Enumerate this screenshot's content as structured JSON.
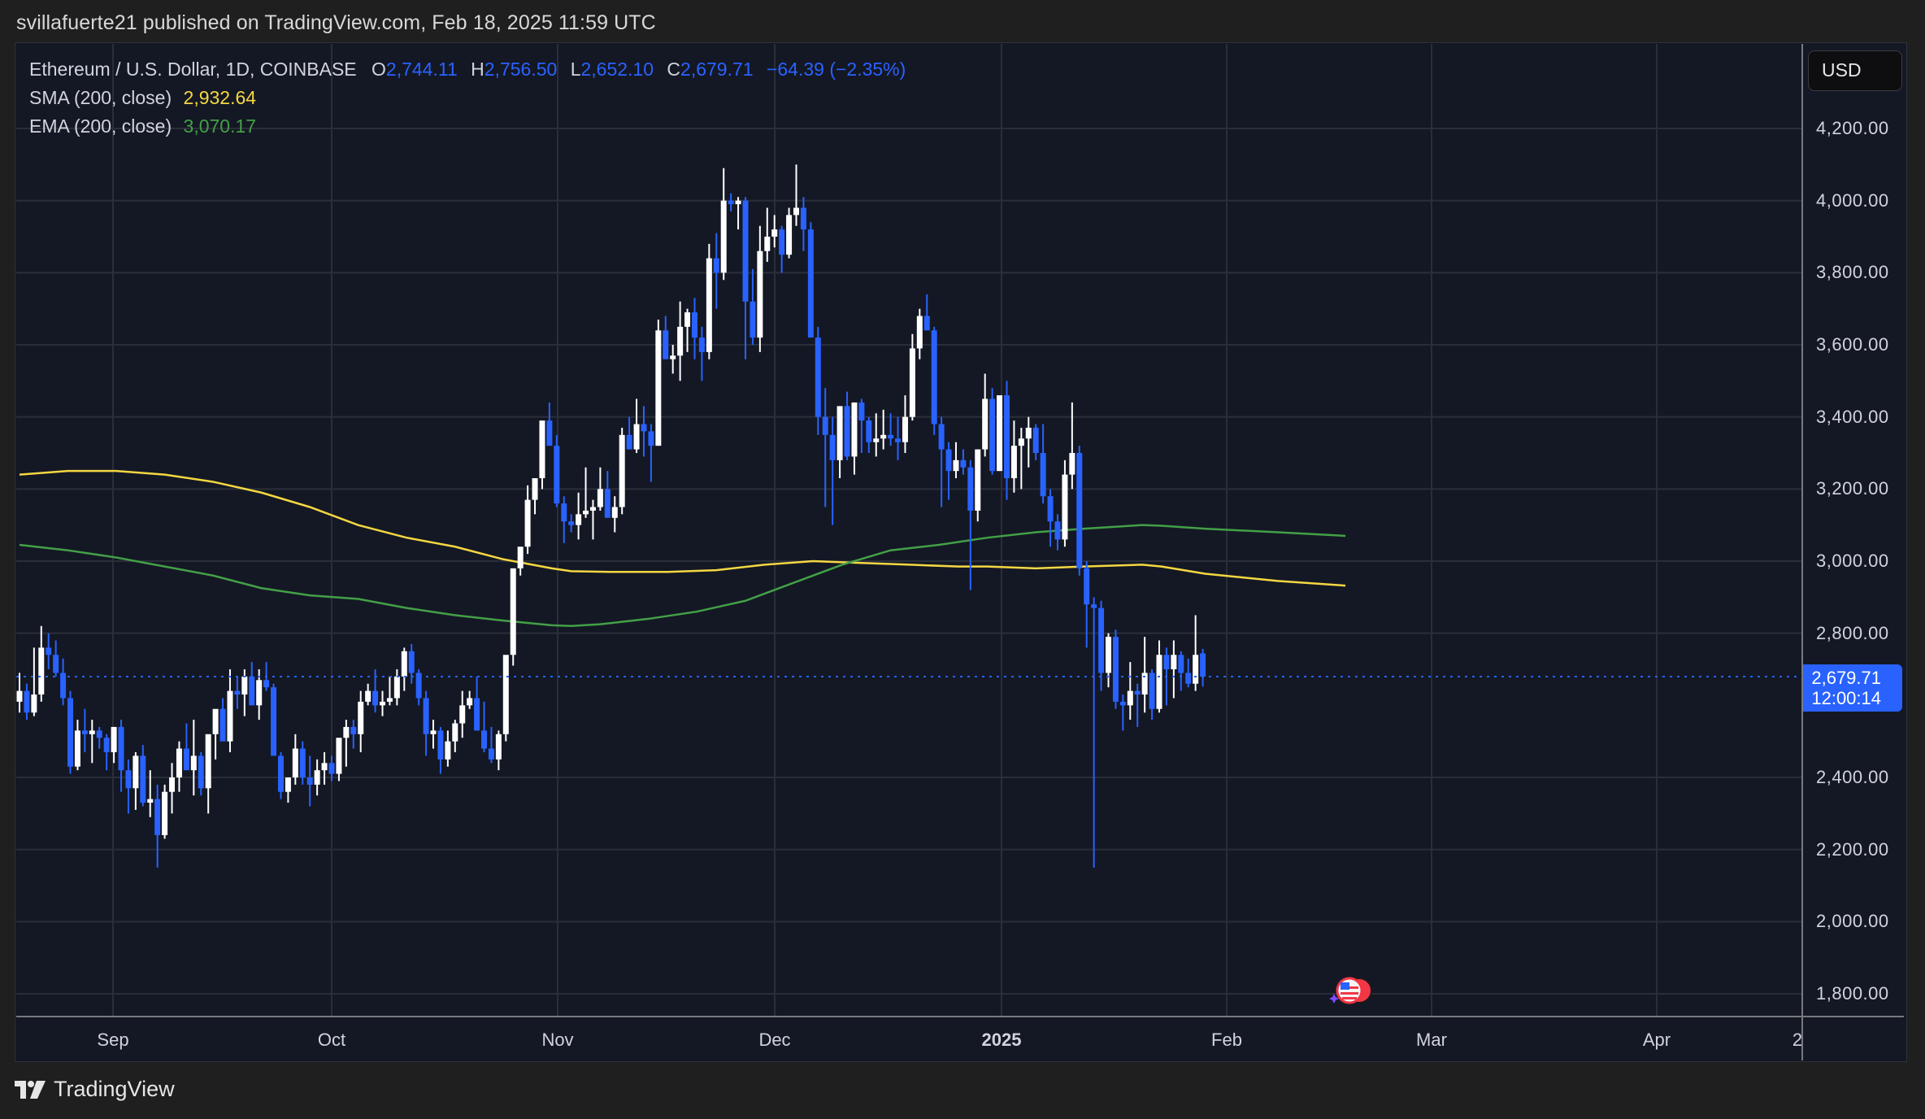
{
  "header": {
    "published_text": "svillafuerte21 published on TradingView.com, Feb 18, 2025 11:59 UTC"
  },
  "legend": {
    "symbol": "Ethereum / U.S. Dollar, 1D, COINBASE",
    "o_label": "O",
    "o_value": "2,744.11",
    "h_label": "H",
    "h_value": "2,756.50",
    "l_label": "L",
    "l_value": "2,652.10",
    "c_label": "C",
    "c_value": "2,679.71",
    "change": "−64.39 (−2.35%)",
    "sma_label": "SMA (200, close)",
    "sma_value": "2,932.64",
    "ema_label": "EMA (200, close)",
    "ema_value": "3,070.17"
  },
  "price_axis": {
    "currency_button": "USD",
    "ticks": [
      "4,200.00",
      "4,000.00",
      "3,800.00",
      "3,600.00",
      "3,400.00",
      "3,200.00",
      "3,000.00",
      "2,800.00",
      "2,400.00",
      "2,200.00",
      "2,000.00",
      "1,800.00"
    ],
    "last_price": "2,679.71",
    "countdown": "12:00:14"
  },
  "time_axis": {
    "ticks": [
      {
        "label": "Sep",
        "bold": false
      },
      {
        "label": "Oct",
        "bold": false
      },
      {
        "label": "Nov",
        "bold": false
      },
      {
        "label": "Dec",
        "bold": false
      },
      {
        "label": "2025",
        "bold": true
      },
      {
        "label": "Feb",
        "bold": false
      },
      {
        "label": "Mar",
        "bold": false
      },
      {
        "label": "Apr",
        "bold": false
      },
      {
        "label": "2",
        "bold": false
      }
    ]
  },
  "footer": {
    "brand": "TradingView"
  },
  "colors": {
    "up": "#ffffff",
    "down": "#2962ff",
    "sma": "#f5d742",
    "ema": "#43a047",
    "grid": "#2a2e39",
    "bg": "#141824",
    "accent": "#2962ff"
  },
  "chart_data": {
    "type": "candlestick",
    "title": "Ethereum / U.S. Dollar, 1D, COINBASE",
    "xlabel": "",
    "ylabel": "USD",
    "ylim": [
      1700,
      4420
    ],
    "grid": true,
    "start_date": "2024-08-19",
    "x_ticks": [
      "Sep",
      "Oct",
      "Nov",
      "Dec",
      "2025",
      "Feb",
      "Mar",
      "Apr",
      "2"
    ],
    "y_ticks": [
      1800,
      2000,
      2200,
      2400,
      2600,
      2800,
      3000,
      3200,
      3400,
      3600,
      3800,
      4000,
      4200
    ],
    "last_price": 2679.71,
    "ohlc": [
      [
        2610,
        2690,
        2580,
        2640
      ],
      [
        2640,
        2660,
        2560,
        2580
      ],
      [
        2580,
        2760,
        2570,
        2630
      ],
      [
        2630,
        2820,
        2610,
        2760
      ],
      [
        2760,
        2800,
        2700,
        2740
      ],
      [
        2740,
        2780,
        2680,
        2690
      ],
      [
        2690,
        2730,
        2600,
        2620
      ],
      [
        2620,
        2640,
        2410,
        2430
      ],
      [
        2430,
        2560,
        2420,
        2530
      ],
      [
        2530,
        2590,
        2470,
        2520
      ],
      [
        2520,
        2560,
        2440,
        2530
      ],
      [
        2530,
        2540,
        2480,
        2510
      ],
      [
        2510,
        2520,
        2420,
        2470
      ],
      [
        2470,
        2540,
        2440,
        2540
      ],
      [
        2540,
        2560,
        2360,
        2420
      ],
      [
        2420,
        2450,
        2300,
        2370
      ],
      [
        2370,
        2470,
        2310,
        2460
      ],
      [
        2460,
        2490,
        2320,
        2330
      ],
      [
        2330,
        2420,
        2290,
        2340
      ],
      [
        2340,
        2380,
        2150,
        2240
      ],
      [
        2240,
        2380,
        2230,
        2360
      ],
      [
        2360,
        2440,
        2300,
        2400
      ],
      [
        2400,
        2500,
        2360,
        2480
      ],
      [
        2480,
        2550,
        2420,
        2420
      ],
      [
        2420,
        2560,
        2350,
        2460
      ],
      [
        2460,
        2470,
        2350,
        2370
      ],
      [
        2370,
        2510,
        2300,
        2520
      ],
      [
        2520,
        2560,
        2450,
        2590
      ],
      [
        2590,
        2620,
        2510,
        2500
      ],
      [
        2500,
        2700,
        2470,
        2640
      ],
      [
        2640,
        2680,
        2590,
        2630
      ],
      [
        2630,
        2700,
        2570,
        2680
      ],
      [
        2680,
        2720,
        2600,
        2600
      ],
      [
        2600,
        2700,
        2560,
        2670
      ],
      [
        2670,
        2720,
        2640,
        2650
      ],
      [
        2650,
        2660,
        2540,
        2460
      ],
      [
        2460,
        2470,
        2340,
        2360
      ],
      [
        2360,
        2400,
        2330,
        2400
      ],
      [
        2400,
        2520,
        2380,
        2480
      ],
      [
        2480,
        2500,
        2380,
        2400
      ],
      [
        2400,
        2460,
        2320,
        2380
      ],
      [
        2380,
        2450,
        2350,
        2420
      ],
      [
        2420,
        2470,
        2380,
        2440
      ],
      [
        2440,
        2460,
        2390,
        2410
      ],
      [
        2410,
        2500,
        2390,
        2510
      ],
      [
        2510,
        2560,
        2430,
        2540
      ],
      [
        2540,
        2560,
        2480,
        2520
      ],
      [
        2520,
        2640,
        2470,
        2610
      ],
      [
        2610,
        2660,
        2600,
        2640
      ],
      [
        2640,
        2700,
        2580,
        2600
      ],
      [
        2600,
        2640,
        2570,
        2610
      ],
      [
        2610,
        2680,
        2600,
        2620
      ],
      [
        2620,
        2700,
        2600,
        2680
      ],
      [
        2680,
        2760,
        2640,
        2750
      ],
      [
        2750,
        2770,
        2660,
        2690
      ],
      [
        2690,
        2700,
        2600,
        2620
      ],
      [
        2620,
        2640,
        2460,
        2520
      ],
      [
        2520,
        2560,
        2480,
        2530
      ],
      [
        2530,
        2540,
        2410,
        2450
      ],
      [
        2450,
        2530,
        2430,
        2500
      ],
      [
        2500,
        2560,
        2470,
        2550
      ],
      [
        2550,
        2640,
        2510,
        2600
      ],
      [
        2600,
        2640,
        2590,
        2620
      ],
      [
        2620,
        2680,
        2560,
        2530
      ],
      [
        2530,
        2610,
        2470,
        2480
      ],
      [
        2480,
        2540,
        2440,
        2450
      ],
      [
        2450,
        2530,
        2420,
        2520
      ],
      [
        2520,
        2720,
        2500,
        2740
      ],
      [
        2740,
        2790,
        2710,
        2980
      ],
      [
        2980,
        3010,
        2960,
        3040
      ],
      [
        3040,
        3210,
        3020,
        3170
      ],
      [
        3170,
        3230,
        3130,
        3230
      ],
      [
        3230,
        3350,
        3200,
        3390
      ],
      [
        3390,
        3440,
        3320,
        3320
      ],
      [
        3320,
        3350,
        3150,
        3160
      ],
      [
        3160,
        3180,
        3050,
        3110
      ],
      [
        3110,
        3130,
        3080,
        3100
      ],
      [
        3100,
        3190,
        3060,
        3130
      ],
      [
        3130,
        3260,
        3120,
        3140
      ],
      [
        3140,
        3170,
        3060,
        3150
      ],
      [
        3150,
        3260,
        3140,
        3200
      ],
      [
        3200,
        3250,
        3130,
        3120
      ],
      [
        3120,
        3180,
        3080,
        3150
      ],
      [
        3150,
        3370,
        3130,
        3350
      ],
      [
        3350,
        3400,
        3310,
        3310
      ],
      [
        3310,
        3450,
        3300,
        3380
      ],
      [
        3380,
        3430,
        3290,
        3360
      ],
      [
        3360,
        3380,
        3220,
        3320
      ],
      [
        3320,
        3670,
        3320,
        3640
      ],
      [
        3640,
        3680,
        3590,
        3560
      ],
      [
        3560,
        3600,
        3520,
        3570
      ],
      [
        3570,
        3720,
        3500,
        3650
      ],
      [
        3650,
        3700,
        3580,
        3690
      ],
      [
        3690,
        3730,
        3560,
        3620
      ],
      [
        3620,
        3650,
        3500,
        3580
      ],
      [
        3580,
        3880,
        3560,
        3840
      ],
      [
        3840,
        3910,
        3700,
        3800
      ],
      [
        3800,
        4090,
        3780,
        4000
      ],
      [
        4000,
        4020,
        3970,
        3990
      ],
      [
        3990,
        4010,
        3920,
        4000
      ],
      [
        4000,
        4010,
        3560,
        3720
      ],
      [
        3720,
        3810,
        3600,
        3620
      ],
      [
        3620,
        3930,
        3580,
        3860
      ],
      [
        3860,
        3980,
        3830,
        3900
      ],
      [
        3900,
        3960,
        3870,
        3920
      ],
      [
        3920,
        3930,
        3800,
        3850
      ],
      [
        3850,
        3980,
        3840,
        3960
      ],
      [
        3960,
        4100,
        3930,
        3980
      ],
      [
        3980,
        4010,
        3860,
        3920
      ],
      [
        3920,
        3940,
        3650,
        3620
      ],
      [
        3620,
        3650,
        3350,
        3400
      ],
      [
        3400,
        3480,
        3150,
        3350
      ],
      [
        3350,
        3400,
        3100,
        3280
      ],
      [
        3280,
        3420,
        3230,
        3430
      ],
      [
        3430,
        3470,
        3280,
        3290
      ],
      [
        3290,
        3440,
        3240,
        3440
      ],
      [
        3440,
        3450,
        3300,
        3390
      ],
      [
        3390,
        3400,
        3300,
        3330
      ],
      [
        3330,
        3410,
        3290,
        3340
      ],
      [
        3340,
        3420,
        3310,
        3350
      ],
      [
        3350,
        3410,
        3320,
        3340
      ],
      [
        3340,
        3400,
        3280,
        3330
      ],
      [
        3330,
        3460,
        3300,
        3400
      ],
      [
        3400,
        3630,
        3390,
        3590
      ],
      [
        3590,
        3700,
        3560,
        3680
      ],
      [
        3680,
        3740,
        3650,
        3640
      ],
      [
        3640,
        3650,
        3350,
        3380
      ],
      [
        3380,
        3400,
        3150,
        3310
      ],
      [
        3310,
        3330,
        3170,
        3250
      ],
      [
        3250,
        3330,
        3230,
        3280
      ],
      [
        3280,
        3310,
        3240,
        3260
      ],
      [
        3260,
        3280,
        2920,
        3140
      ],
      [
        3140,
        3270,
        3110,
        3310
      ],
      [
        3310,
        3520,
        3290,
        3450
      ],
      [
        3450,
        3480,
        3240,
        3250
      ],
      [
        3250,
        3380,
        3250,
        3460
      ],
      [
        3460,
        3500,
        3170,
        3230
      ],
      [
        3230,
        3390,
        3190,
        3320
      ],
      [
        3320,
        3370,
        3200,
        3340
      ],
      [
        3340,
        3400,
        3260,
        3370
      ],
      [
        3370,
        3380,
        3280,
        3300
      ],
      [
        3300,
        3380,
        3160,
        3180
      ],
      [
        3180,
        3200,
        3040,
        3110
      ],
      [
        3110,
        3130,
        3030,
        3060
      ],
      [
        3060,
        3280,
        3040,
        3240
      ],
      [
        3240,
        3440,
        3200,
        3300
      ],
      [
        3300,
        3320,
        2960,
        2980
      ],
      [
        2980,
        3000,
        2760,
        2880
      ],
      [
        2880,
        2900,
        2150,
        2870
      ],
      [
        2870,
        2890,
        2640,
        2690
      ],
      [
        2690,
        2800,
        2650,
        2790
      ],
      [
        2790,
        2810,
        2590,
        2610
      ],
      [
        2610,
        2630,
        2530,
        2600
      ],
      [
        2600,
        2720,
        2560,
        2640
      ],
      [
        2640,
        2660,
        2540,
        2630
      ],
      [
        2630,
        2790,
        2580,
        2690
      ],
      [
        2690,
        2700,
        2560,
        2590
      ],
      [
        2590,
        2780,
        2580,
        2740
      ],
      [
        2740,
        2760,
        2600,
        2700
      ],
      [
        2700,
        2780,
        2620,
        2740
      ],
      [
        2740,
        2750,
        2640,
        2690
      ],
      [
        2690,
        2730,
        2650,
        2660
      ],
      [
        2660,
        2850,
        2640,
        2740
      ],
      [
        2744.11,
        2756.5,
        2652.1,
        2679.71
      ]
    ],
    "series": [
      {
        "name": "SMA (200, close)",
        "color": "#f5d742",
        "last": 2932.64,
        "points": [
          [
            0,
            3240
          ],
          [
            10,
            3250
          ],
          [
            20,
            3250
          ],
          [
            30,
            3240
          ],
          [
            40,
            3220
          ],
          [
            50,
            3190
          ],
          [
            60,
            3150
          ],
          [
            70,
            3100
          ],
          [
            80,
            3065
          ],
          [
            90,
            3040
          ],
          [
            100,
            3005
          ],
          [
            110,
            2980
          ],
          [
            114,
            2972
          ],
          [
            122,
            2970
          ],
          [
            134,
            2970
          ],
          [
            144,
            2975
          ],
          [
            154,
            2990
          ],
          [
            164,
            3000
          ],
          [
            174,
            2995
          ],
          [
            184,
            2990
          ],
          [
            194,
            2985
          ],
          [
            200,
            2985
          ],
          [
            210,
            2980
          ],
          [
            220,
            2985
          ],
          [
            232,
            2990
          ],
          [
            236,
            2985
          ],
          [
            245,
            2965
          ],
          [
            260,
            2945
          ],
          [
            274,
            2932
          ]
        ]
      },
      {
        "name": "EMA (200, close)",
        "color": "#43a047",
        "last": 3070.17,
        "points": [
          [
            0,
            3045
          ],
          [
            10,
            3030
          ],
          [
            20,
            3010
          ],
          [
            30,
            2985
          ],
          [
            40,
            2960
          ],
          [
            50,
            2925
          ],
          [
            60,
            2905
          ],
          [
            70,
            2895
          ],
          [
            80,
            2870
          ],
          [
            90,
            2850
          ],
          [
            100,
            2835
          ],
          [
            110,
            2822
          ],
          [
            114,
            2820
          ],
          [
            120,
            2825
          ],
          [
            130,
            2840
          ],
          [
            140,
            2860
          ],
          [
            150,
            2890
          ],
          [
            160,
            2940
          ],
          [
            170,
            2990
          ],
          [
            180,
            3030
          ],
          [
            190,
            3045
          ],
          [
            200,
            3065
          ],
          [
            210,
            3080
          ],
          [
            220,
            3090
          ],
          [
            232,
            3100
          ],
          [
            236,
            3098
          ],
          [
            245,
            3090
          ],
          [
            260,
            3080
          ],
          [
            274,
            3070
          ]
        ]
      }
    ]
  }
}
